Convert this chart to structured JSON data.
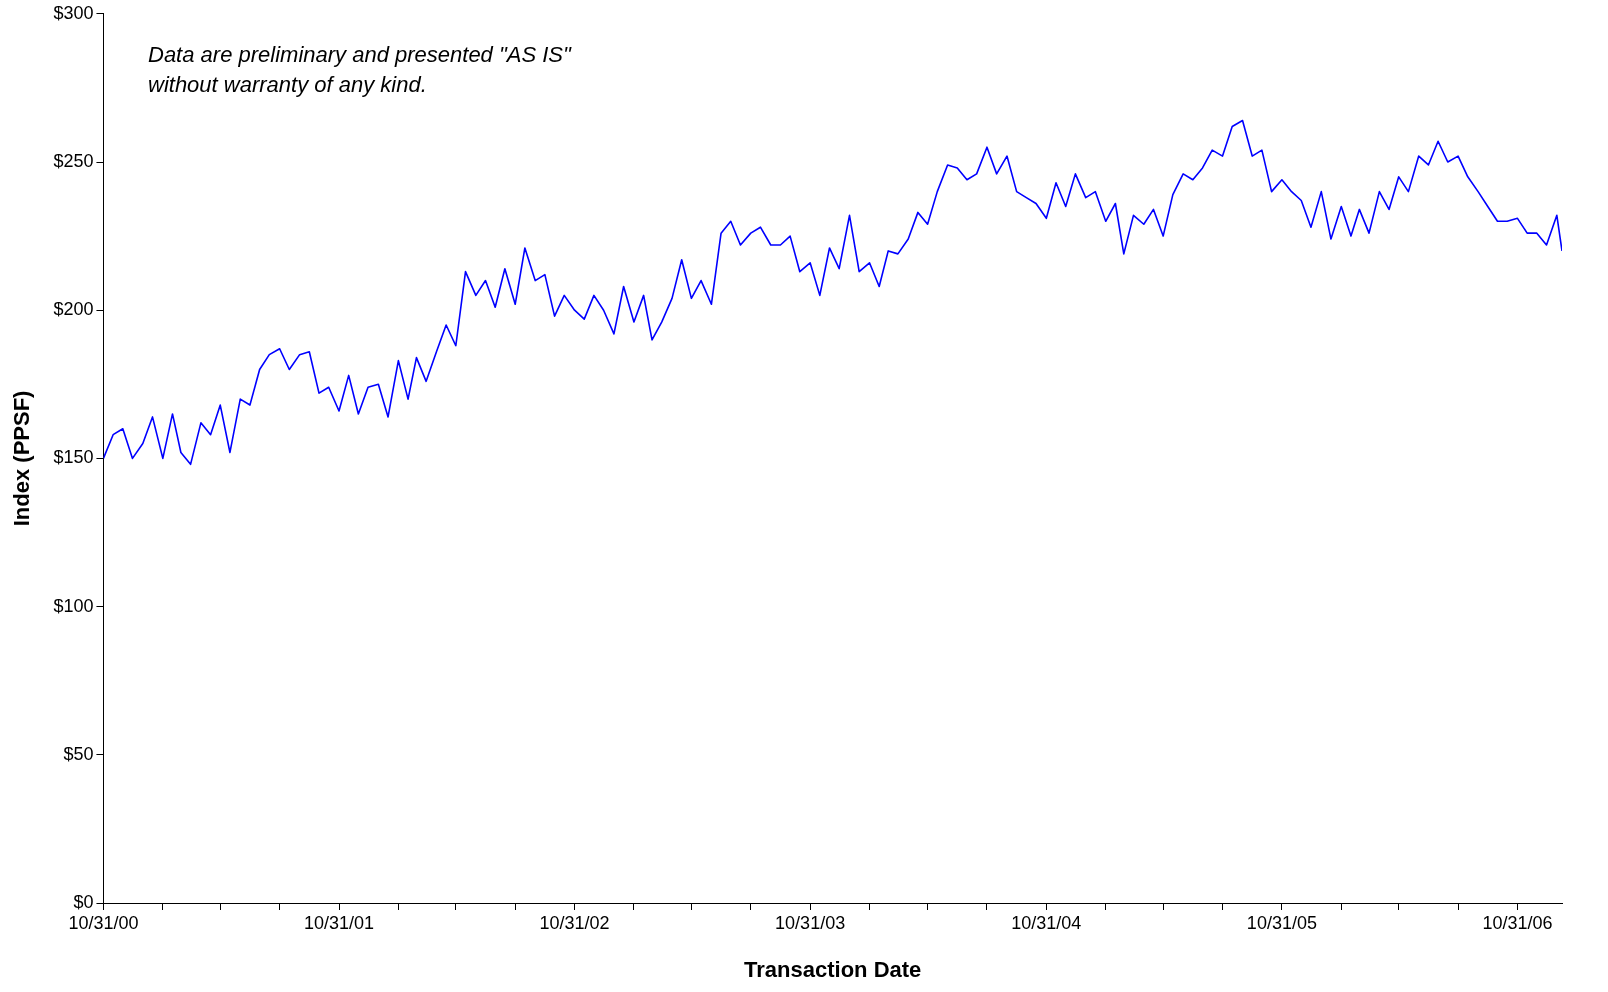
{
  "chart_data": {
    "type": "line",
    "xlabel": "Transaction Date",
    "ylabel": "Index (PPSF)",
    "annotations": [
      "Data are preliminary and presented \"AS IS\" without warranty of any kind."
    ],
    "x": [
      "2000-10-31",
      "2000-11-15",
      "2000-11-30",
      "2000-12-15",
      "2000-12-31",
      "2001-01-15",
      "2001-01-31",
      "2001-02-15",
      "2001-02-28",
      "2001-03-15",
      "2001-03-31",
      "2001-04-15",
      "2001-04-30",
      "2001-05-15",
      "2001-05-31",
      "2001-06-15",
      "2001-06-30",
      "2001-07-15",
      "2001-07-31",
      "2001-08-15",
      "2001-08-31",
      "2001-09-15",
      "2001-09-30",
      "2001-10-15",
      "2001-10-31",
      "2001-11-15",
      "2001-11-30",
      "2001-12-15",
      "2001-12-31",
      "2002-01-15",
      "2002-01-31",
      "2002-02-15",
      "2002-02-28",
      "2002-03-15",
      "2002-03-31",
      "2002-04-15",
      "2002-04-30",
      "2002-05-15",
      "2002-05-31",
      "2002-06-15",
      "2002-06-30",
      "2002-07-15",
      "2002-07-31",
      "2002-08-15",
      "2002-08-31",
      "2002-09-15",
      "2002-09-30",
      "2002-10-15",
      "2002-10-31",
      "2002-11-15",
      "2002-11-30",
      "2002-12-15",
      "2002-12-31",
      "2003-01-15",
      "2003-01-31",
      "2003-02-15",
      "2003-02-28",
      "2003-03-15",
      "2003-03-31",
      "2003-04-15",
      "2003-04-30",
      "2003-05-15",
      "2003-05-31",
      "2003-06-15",
      "2003-06-30",
      "2003-07-15",
      "2003-07-31",
      "2003-08-15",
      "2003-08-31",
      "2003-09-15",
      "2003-09-30",
      "2003-10-15",
      "2003-10-31",
      "2003-11-15",
      "2003-11-30",
      "2003-12-15",
      "2003-12-31",
      "2004-01-15",
      "2004-01-31",
      "2004-02-15",
      "2004-02-29",
      "2004-03-15",
      "2004-03-31",
      "2004-04-15",
      "2004-04-30",
      "2004-05-15",
      "2004-05-31",
      "2004-06-15",
      "2004-06-30",
      "2004-07-15",
      "2004-07-31",
      "2004-08-15",
      "2004-08-31",
      "2004-09-15",
      "2004-09-30",
      "2004-10-15",
      "2004-10-31",
      "2004-11-15",
      "2004-11-30",
      "2004-12-15",
      "2004-12-31",
      "2005-01-15",
      "2005-01-31",
      "2005-02-15",
      "2005-02-28",
      "2005-03-15",
      "2005-03-31",
      "2005-04-15",
      "2005-04-30",
      "2005-05-15",
      "2005-05-31",
      "2005-06-15",
      "2005-06-30",
      "2005-07-15",
      "2005-07-31",
      "2005-08-15",
      "2005-08-31",
      "2005-09-15",
      "2005-09-30",
      "2005-10-15",
      "2005-10-31",
      "2005-11-15",
      "2005-11-30",
      "2005-12-15",
      "2005-12-31",
      "2006-01-15",
      "2006-01-31",
      "2006-02-15",
      "2006-02-28",
      "2006-03-15",
      "2006-03-31",
      "2006-04-15",
      "2006-04-30",
      "2006-05-15",
      "2006-05-31",
      "2006-06-15",
      "2006-06-30",
      "2006-07-15",
      "2006-07-31",
      "2006-08-15",
      "2006-08-31",
      "2006-09-15",
      "2006-09-30",
      "2006-10-15",
      "2006-10-31",
      "2006-11-15",
      "2006-11-30",
      "2006-12-15",
      "2006-12-31",
      "2007-01-08"
    ],
    "series": [
      {
        "color": "#0000ff",
        "values": [
          150,
          158,
          160,
          150,
          155,
          164,
          150,
          165,
          152,
          148,
          162,
          158,
          168,
          152,
          170,
          168,
          180,
          185,
          187,
          180,
          185,
          186,
          172,
          174,
          166,
          178,
          165,
          174,
          175,
          164,
          183,
          170,
          184,
          176,
          186,
          195,
          188,
          213,
          205,
          210,
          201,
          214,
          202,
          221,
          210,
          212,
          198,
          205,
          200,
          197,
          205,
          200,
          192,
          208,
          196,
          205,
          190,
          196,
          204,
          217,
          204,
          210,
          202,
          226,
          230,
          222,
          226,
          228,
          222,
          222,
          225,
          213,
          216,
          205,
          221,
          214,
          232,
          213,
          216,
          208,
          220,
          219,
          224,
          233,
          229,
          240,
          249,
          248,
          244,
          246,
          255,
          246,
          252,
          240,
          238,
          236,
          231,
          243,
          235,
          246,
          238,
          240,
          230,
          236,
          219,
          232,
          229,
          234,
          225,
          239,
          246,
          244,
          248,
          254,
          252,
          262,
          264,
          252,
          254,
          240,
          244,
          240,
          237,
          228,
          240,
          224,
          235,
          225,
          234,
          226,
          240,
          234,
          245,
          240,
          252,
          249,
          257,
          250,
          252,
          245,
          240,
          235,
          230,
          230,
          231,
          226,
          226,
          222,
          232,
          220
        ]
      }
    ],
    "xlim": [
      "2000-10-31",
      "2007-01-08"
    ],
    "xticks": [
      {
        "value": "2000-10-31",
        "label": "10/31/00"
      },
      {
        "value": "2001-01-31",
        "label": null
      },
      {
        "value": "2001-04-30",
        "label": null
      },
      {
        "value": "2001-07-31",
        "label": null
      },
      {
        "value": "2001-10-31",
        "label": "10/31/01"
      },
      {
        "value": "2002-01-31",
        "label": null
      },
      {
        "value": "2002-04-30",
        "label": null
      },
      {
        "value": "2002-07-31",
        "label": null
      },
      {
        "value": "2002-10-31",
        "label": "10/31/02"
      },
      {
        "value": "2003-01-31",
        "label": null
      },
      {
        "value": "2003-04-30",
        "label": null
      },
      {
        "value": "2003-07-31",
        "label": null
      },
      {
        "value": "2003-10-31",
        "label": "10/31/03"
      },
      {
        "value": "2004-01-31",
        "label": null
      },
      {
        "value": "2004-04-30",
        "label": null
      },
      {
        "value": "2004-07-31",
        "label": null
      },
      {
        "value": "2004-10-31",
        "label": "10/31/04"
      },
      {
        "value": "2005-01-31",
        "label": null
      },
      {
        "value": "2005-04-30",
        "label": null
      },
      {
        "value": "2005-07-31",
        "label": null
      },
      {
        "value": "2005-10-31",
        "label": "10/31/05"
      },
      {
        "value": "2006-01-31",
        "label": null
      },
      {
        "value": "2006-04-30",
        "label": null
      },
      {
        "value": "2006-07-31",
        "label": null
      },
      {
        "value": "2006-10-31",
        "label": "10/31/06"
      }
    ],
    "ylim": [
      0,
      300
    ],
    "yticks": [
      {
        "value": 0,
        "label": "$0"
      },
      {
        "value": 50,
        "label": "$50"
      },
      {
        "value": 100,
        "label": "$100"
      },
      {
        "value": 150,
        "label": "$150"
      },
      {
        "value": 200,
        "label": "$200"
      },
      {
        "value": 250,
        "label": "$250"
      },
      {
        "value": 300,
        "label": "$300"
      }
    ],
    "grid": false,
    "legend": false,
    "marker": "none",
    "line_style": "solid"
  }
}
